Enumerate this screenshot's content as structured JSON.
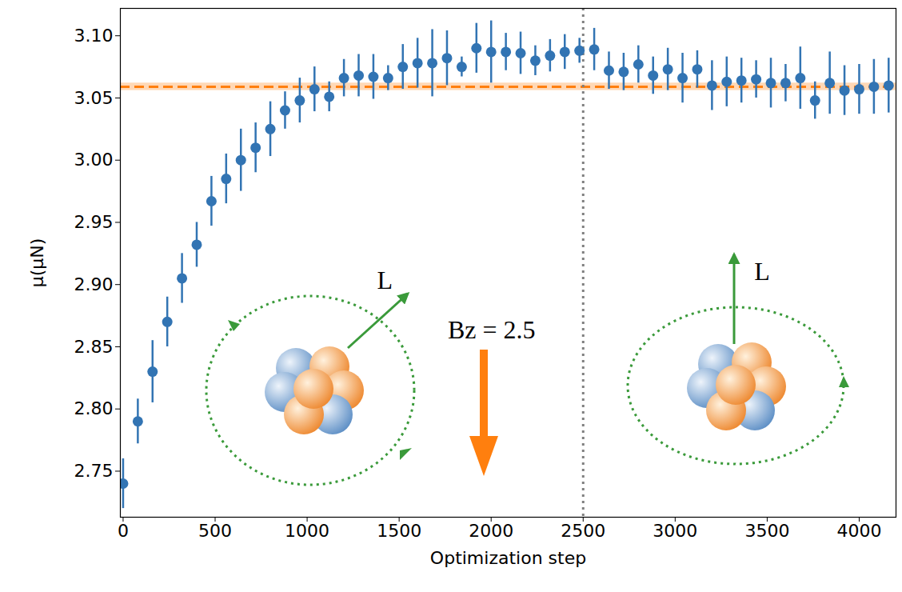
{
  "chart_data": {
    "type": "scatter",
    "xlabel": "Optimization step",
    "ylabel": "μ(μN)",
    "color": "#3274b3",
    "marker": "circle",
    "grid": false,
    "xlim": [
      -15,
      4200
    ],
    "xticks": [
      0,
      500,
      1000,
      1500,
      2000,
      2500,
      3000,
      3500,
      4000
    ],
    "ylim": [
      2.713,
      3.122
    ],
    "yticks": [
      2.75,
      {
        "value": 2.8,
        "label": "2.80"
      },
      2.85,
      {
        "value": 2.9,
        "label": "2.90"
      },
      2.95,
      {
        "value": 3.0,
        "label": "3.00"
      },
      3.05,
      {
        "value": 3.1,
        "label": "3.10"
      }
    ],
    "x": [
      0,
      80,
      160,
      240,
      320,
      400,
      480,
      560,
      640,
      720,
      800,
      880,
      960,
      1040,
      1120,
      1200,
      1280,
      1360,
      1440,
      1520,
      1600,
      1680,
      1760,
      1840,
      1920,
      2000,
      2080,
      2160,
      2240,
      2320,
      2400,
      2480,
      2560,
      2640,
      2720,
      2800,
      2880,
      2960,
      3040,
      3120,
      3200,
      3280,
      3360,
      3440,
      3520,
      3600,
      3680,
      3760,
      3840,
      3920,
      4000,
      4080,
      4160
    ],
    "values": [
      2.74,
      2.79,
      2.83,
      2.87,
      2.905,
      2.932,
      2.967,
      2.985,
      3.0,
      3.01,
      3.025,
      3.04,
      3.048,
      3.057,
      3.051,
      3.066,
      3.068,
      3.067,
      3.066,
      3.075,
      3.078,
      3.078,
      3.082,
      3.075,
      3.09,
      3.087,
      3.087,
      3.086,
      3.08,
      3.084,
      3.087,
      3.088,
      3.089,
      3.072,
      3.071,
      3.077,
      3.068,
      3.073,
      3.066,
      3.073,
      3.06,
      3.063,
      3.064,
      3.065,
      3.062,
      3.062,
      3.066,
      3.048,
      3.062,
      3.056,
      3.057,
      3.059,
      3.06
    ],
    "errors": [
      0.02,
      0.018,
      0.025,
      0.02,
      0.02,
      0.018,
      0.02,
      0.02,
      0.025,
      0.02,
      0.022,
      0.015,
      0.018,
      0.018,
      0.012,
      0.015,
      0.017,
      0.018,
      0.01,
      0.018,
      0.02,
      0.027,
      0.022,
      0.008,
      0.02,
      0.025,
      0.015,
      0.017,
      0.012,
      0.013,
      0.014,
      0.01,
      0.017,
      0.015,
      0.015,
      0.015,
      0.015,
      0.017,
      0.02,
      0.015,
      0.02,
      0.02,
      0.018,
      0.015,
      0.02,
      0.015,
      0.025,
      0.015,
      0.025,
      0.02,
      0.02,
      0.022,
      0.022
    ],
    "hline": {
      "value": 3.059,
      "band": [
        3.056,
        3.062
      ],
      "color": "#ff7f0e",
      "line_style": "dashed"
    },
    "vline": {
      "value": 2500,
      "color": "#808080",
      "line_style": "dotted"
    },
    "annotations": [
      {
        "text": "L⃗",
        "x": 1476,
        "y": 2.903
      },
      {
        "text": "Bz = 2.5",
        "x": 2002,
        "y": 2.863
      },
      {
        "text": "L⃗",
        "x": 3526,
        "y": 2.91
      }
    ]
  }
}
